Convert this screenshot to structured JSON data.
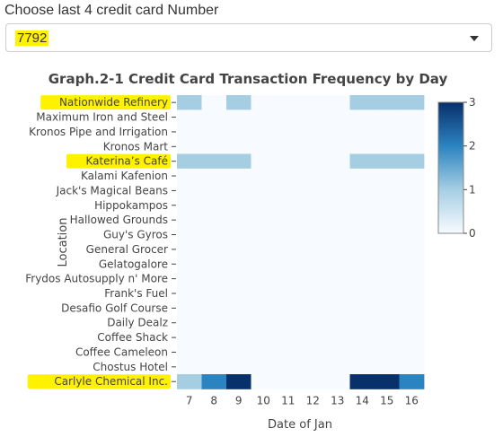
{
  "control": {
    "label": "Choose last 4 credit card Number",
    "selected_value": "7792",
    "highlight_color": "#fff200"
  },
  "chart_data": {
    "type": "heatmap",
    "title": "Graph.2-1 Credit Card Transaction Frequency by Day",
    "xlabel": "Date of Jan",
    "ylabel": "Location",
    "x": [
      7,
      8,
      9,
      10,
      11,
      12,
      13,
      14,
      15,
      16
    ],
    "y": [
      "Nationwide Refinery",
      "Maximum Iron and Steel",
      "Kronos Pipe and Irrigation",
      "Kronos Mart",
      "Katerina’s Café",
      "Kalami Kafenion",
      "Jack's Magical Beans",
      "Hippokampos",
      "Hallowed Grounds",
      "Guy's Gyros",
      "General Grocer",
      "Gelatogalore",
      "Frydos Autosupply n' More",
      "Frank's Fuel",
      "Desafio Golf Course",
      "Daily Dealz",
      "Coffee Shack",
      "Coffee Cameleon",
      "Chostus Hotel",
      "Carlyle Chemical Inc."
    ],
    "highlighted_locations": [
      "Nationwide Refinery",
      "Katerina’s Café",
      "Carlyle Chemical Inc."
    ],
    "z": [
      [
        1,
        0,
        1,
        0,
        0,
        0,
        0,
        1,
        1,
        1
      ],
      [
        0,
        0,
        0,
        0,
        0,
        0,
        0,
        0,
        0,
        0
      ],
      [
        0,
        0,
        0,
        0,
        0,
        0,
        0,
        0,
        0,
        0
      ],
      [
        0,
        0,
        0,
        0,
        0,
        0,
        0,
        0,
        0,
        0
      ],
      [
        1,
        1,
        1,
        0,
        0,
        0,
        0,
        1,
        1,
        1
      ],
      [
        0,
        0,
        0,
        0,
        0,
        0,
        0,
        0,
        0,
        0
      ],
      [
        0,
        0,
        0,
        0,
        0,
        0,
        0,
        0,
        0,
        0
      ],
      [
        0,
        0,
        0,
        0,
        0,
        0,
        0,
        0,
        0,
        0
      ],
      [
        0,
        0,
        0,
        0,
        0,
        0,
        0,
        0,
        0,
        0
      ],
      [
        0,
        0,
        0,
        0,
        0,
        0,
        0,
        0,
        0,
        0
      ],
      [
        0,
        0,
        0,
        0,
        0,
        0,
        0,
        0,
        0,
        0
      ],
      [
        0,
        0,
        0,
        0,
        0,
        0,
        0,
        0,
        0,
        0
      ],
      [
        0,
        0,
        0,
        0,
        0,
        0,
        0,
        0,
        0,
        0
      ],
      [
        0,
        0,
        0,
        0,
        0,
        0,
        0,
        0,
        0,
        0
      ],
      [
        0,
        0,
        0,
        0,
        0,
        0,
        0,
        0,
        0,
        0
      ],
      [
        0,
        0,
        0,
        0,
        0,
        0,
        0,
        0,
        0,
        0
      ],
      [
        0,
        0,
        0,
        0,
        0,
        0,
        0,
        0,
        0,
        0
      ],
      [
        0,
        0,
        0,
        0,
        0,
        0,
        0,
        0,
        0,
        0
      ],
      [
        0,
        0,
        0,
        0,
        0,
        0,
        0,
        0,
        0,
        0
      ],
      [
        1,
        2,
        3,
        0,
        0,
        0,
        0,
        3,
        3,
        2
      ]
    ],
    "zlim": [
      0,
      3
    ],
    "colorscale": [
      [
        0,
        "#f7fbff"
      ],
      [
        1,
        "#a6cee3"
      ],
      [
        2,
        "#2b83c0"
      ],
      [
        3,
        "#08306b"
      ]
    ],
    "colorbar_ticks": [
      0,
      1,
      2,
      3
    ]
  }
}
